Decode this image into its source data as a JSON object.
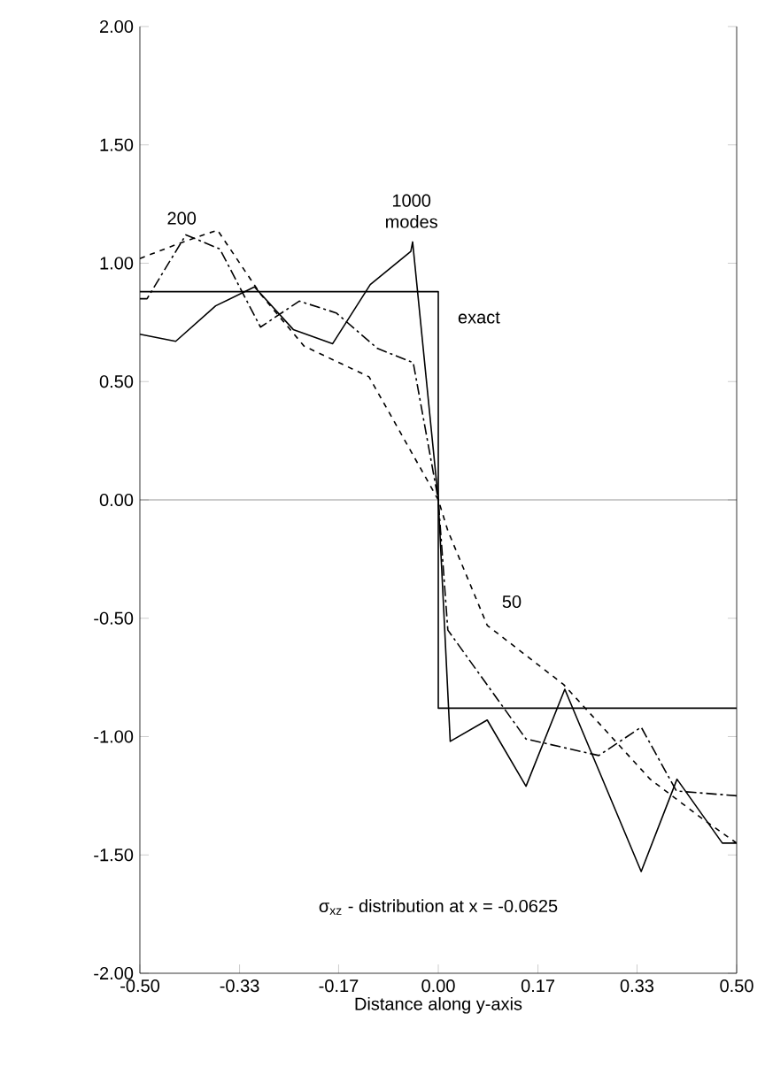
{
  "chart_data": {
    "type": "line",
    "xlabel": "Distance along y-axis",
    "xlim": [
      -0.5,
      0.5
    ],
    "ylim": [
      -2,
      2
    ],
    "xticks": [
      {
        "value": -0.5,
        "label": "-0.50"
      },
      {
        "value": -0.333,
        "label": "-0.33"
      },
      {
        "value": -0.167,
        "label": "-0.17"
      },
      {
        "value": 0,
        "label": "0.00"
      },
      {
        "value": 0.167,
        "label": "0.17"
      },
      {
        "value": 0.333,
        "label": "0.33"
      },
      {
        "value": 0.5,
        "label": "0.50"
      }
    ],
    "yticks": [
      {
        "value": -2,
        "label": "-2.00"
      },
      {
        "value": -1.5,
        "label": "-1.50"
      },
      {
        "value": -1,
        "label": "-1.00"
      },
      {
        "value": -0.5,
        "label": "-0.50"
      },
      {
        "value": 0,
        "label": "0.00"
      },
      {
        "value": 0.5,
        "label": "0.50"
      },
      {
        "value": 1,
        "label": "1.00"
      },
      {
        "value": 1.5,
        "label": "1.50"
      },
      {
        "value": 2,
        "label": "2.00"
      }
    ],
    "grid": false,
    "legend": false,
    "series": [
      {
        "name": "1000 modes",
        "color": "#000000",
        "line_style": "solid",
        "x": [
          -0.5,
          -0.44,
          -0.373,
          -0.308,
          -0.243,
          -0.177,
          -0.114,
          -0.046,
          -0.043,
          0.0,
          0.02,
          0.082,
          0.147,
          0.212,
          0.34,
          0.4,
          0.476,
          0.5
        ],
        "values": [
          0.7,
          0.67,
          0.82,
          0.9,
          0.72,
          0.66,
          0.91,
          1.05,
          1.09,
          0.0,
          -1.02,
          -0.93,
          -1.21,
          -0.8,
          -1.57,
          -1.18,
          -1.45,
          -1.45
        ]
      },
      {
        "name": "200",
        "color": "#000000",
        "line_style": "dashdot",
        "x": [
          -0.5,
          -0.488,
          -0.423,
          -0.366,
          -0.298,
          -0.233,
          -0.171,
          -0.102,
          -0.042,
          0.0,
          0.016,
          0.147,
          0.269,
          0.34,
          0.399,
          0.5
        ],
        "values": [
          0.85,
          0.85,
          1.12,
          1.06,
          0.73,
          0.84,
          0.79,
          0.64,
          0.58,
          0.0,
          -0.55,
          -1.01,
          -1.08,
          -0.96,
          -1.23,
          -1.25
        ]
      },
      {
        "name": "50",
        "color": "#000000",
        "line_style": "dashed",
        "x": [
          -0.5,
          -0.438,
          -0.37,
          -0.298,
          -0.225,
          -0.116,
          0.0,
          0.016,
          0.082,
          0.21,
          0.355,
          0.444,
          0.5
        ],
        "values": [
          1.02,
          1.08,
          1.14,
          0.87,
          0.65,
          0.52,
          0.0,
          -0.13,
          -0.53,
          -0.78,
          -1.18,
          -1.35,
          -1.45
        ]
      },
      {
        "name": "exact",
        "color": "#000000",
        "line_style": "solid",
        "x": [
          -0.5,
          0.0,
          0.0,
          0.5
        ],
        "values": [
          0.88,
          0.88,
          -0.88,
          -0.88
        ]
      }
    ],
    "ref_lines": [
      {
        "axis": "y",
        "value": 0
      }
    ],
    "annotations": [
      "σ$_{xz}$ - distribution at x = -0.0625"
    ]
  }
}
